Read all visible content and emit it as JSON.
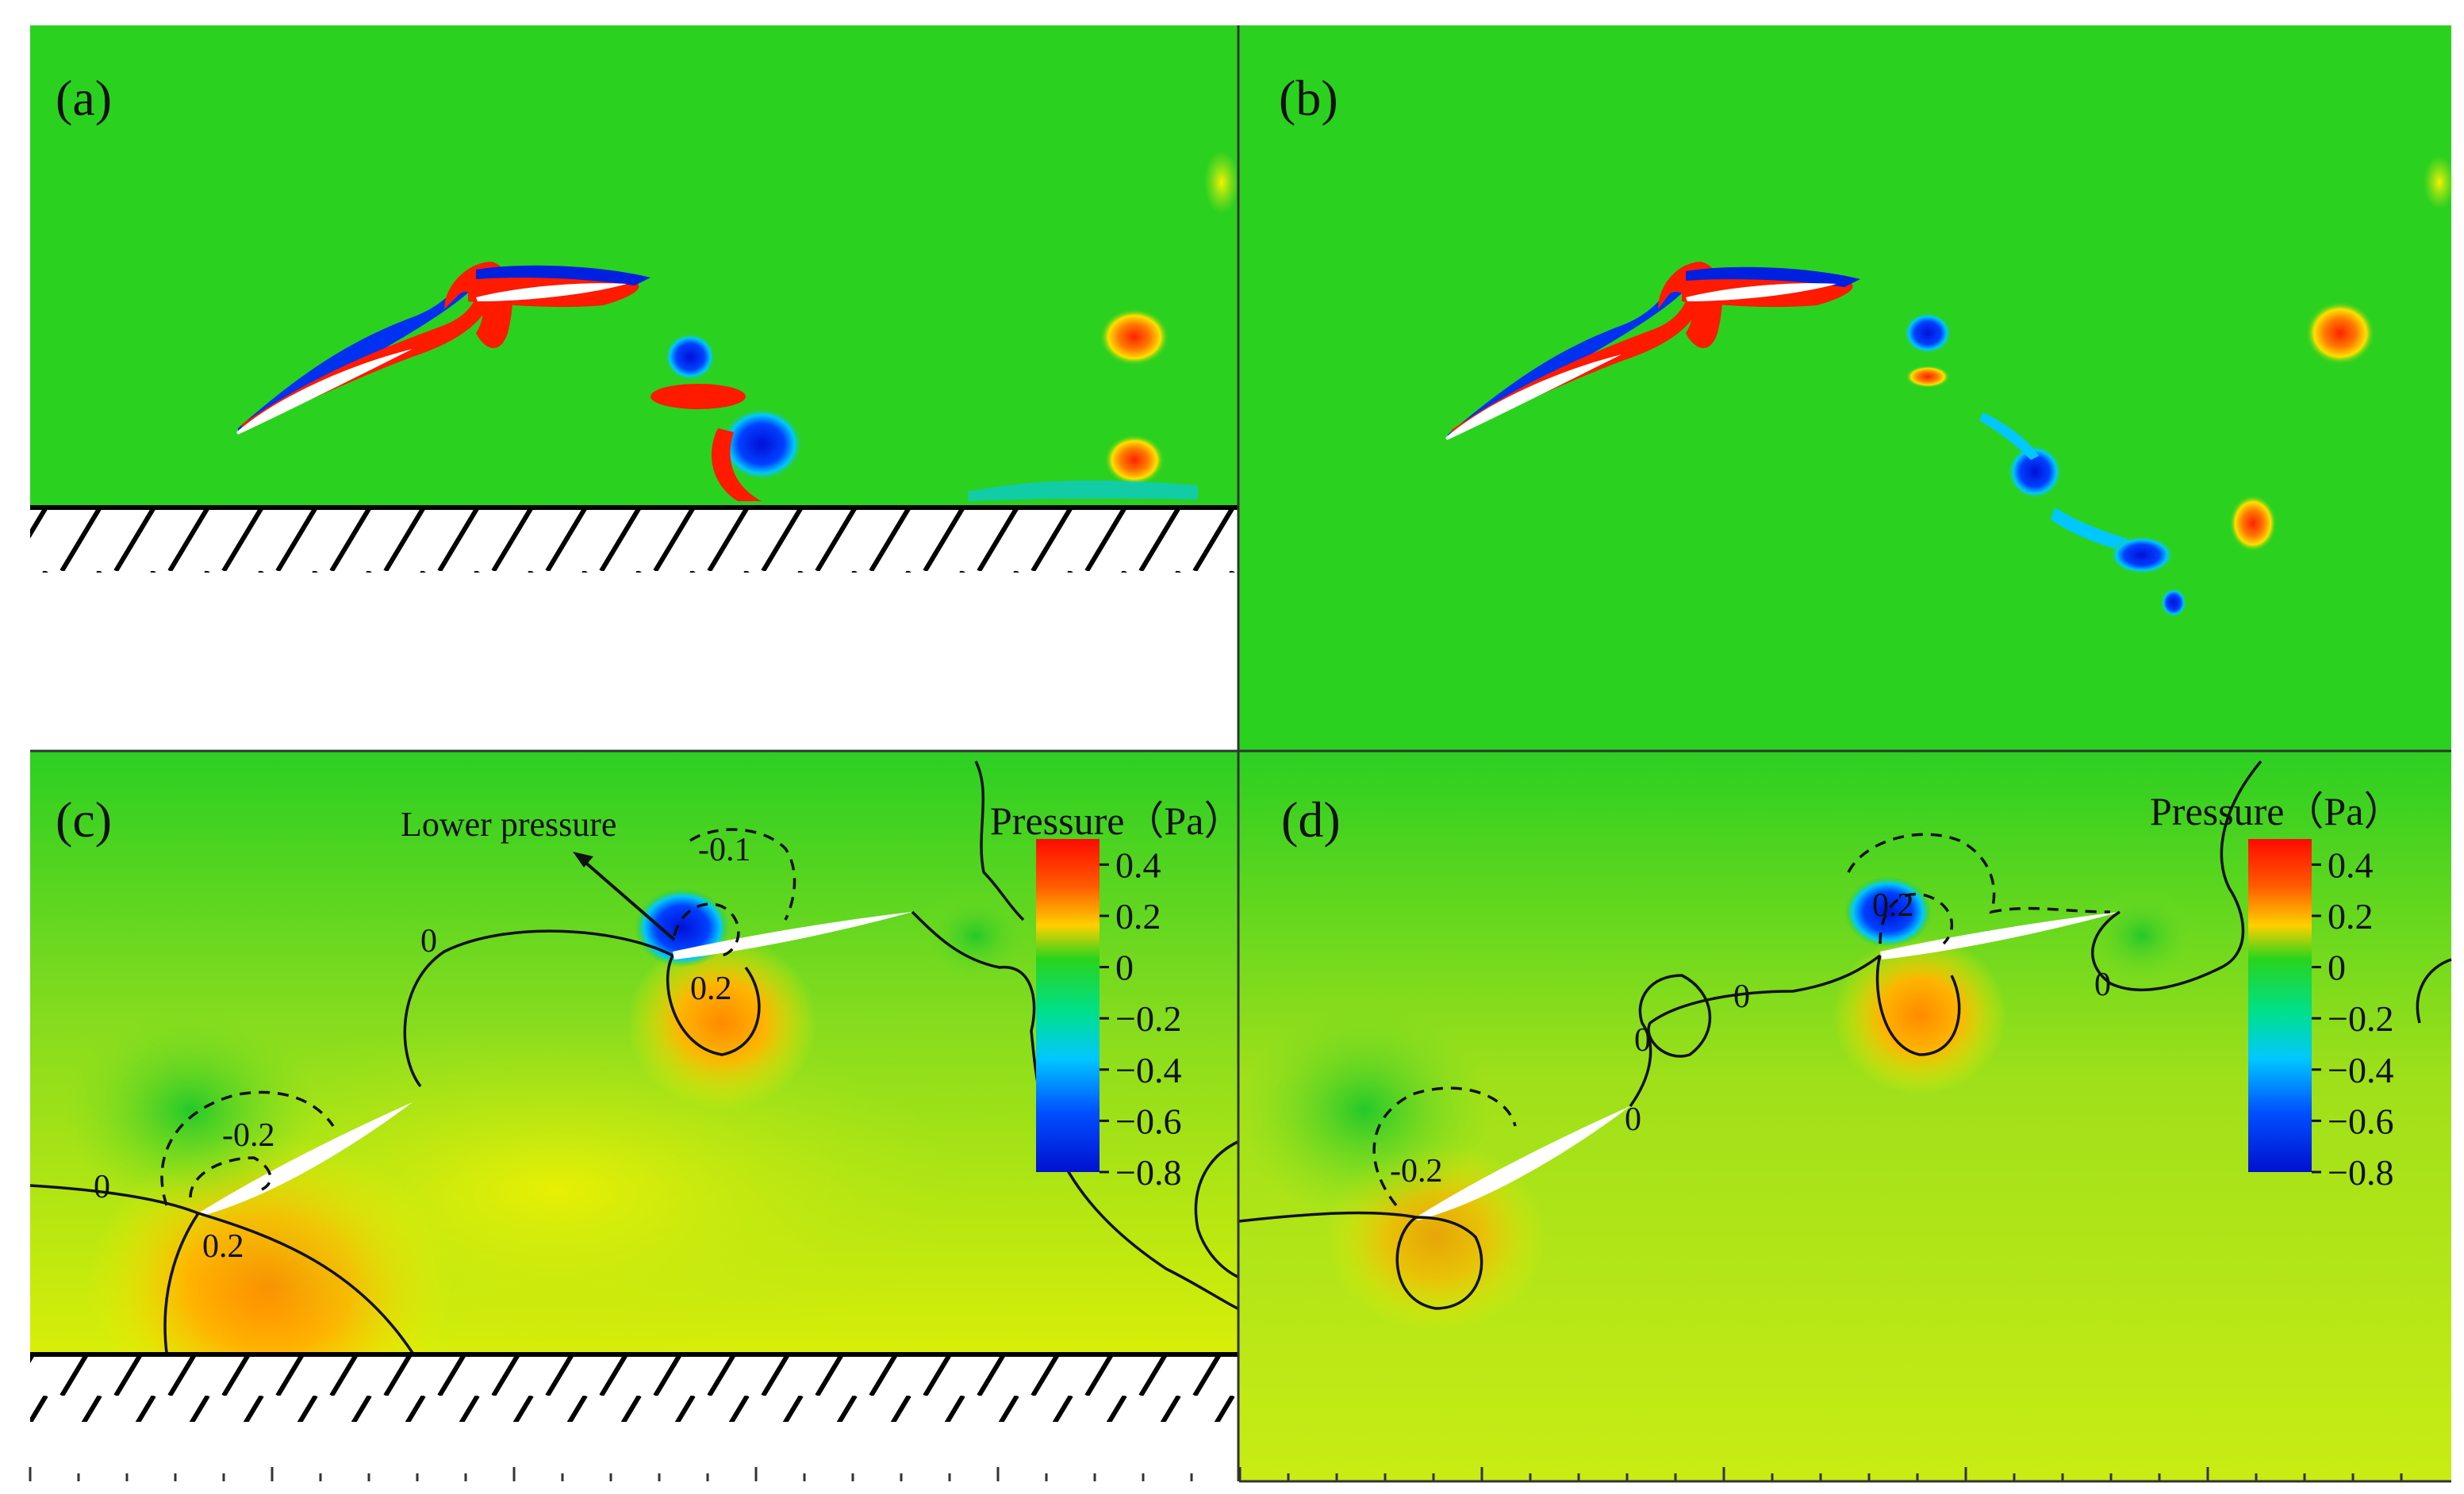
{
  "panels": {
    "a": "(a)",
    "b": "(b)",
    "c": "(c)",
    "d": "(d)"
  },
  "annotation": "Lower pressure",
  "colorbar": {
    "title": "Pressure（Pa）",
    "ticks": [
      "0.4",
      "0.2",
      "0",
      "-0.2",
      "-0.4",
      "-0.6",
      "-0.8"
    ],
    "range": [
      -0.8,
      0.5
    ]
  },
  "contour_labels": {
    "c": [
      "-0.1",
      "0",
      "0.2",
      "-0.2",
      "0",
      "0.2"
    ],
    "d": [
      "0.2",
      "0",
      "0",
      "0",
      "0",
      "-0.2"
    ]
  },
  "colors": {
    "field_green": "#2bd11f",
    "pressure_low": "#0018e0",
    "pressure_high": "#ff1a00",
    "ground": "#ffffff"
  },
  "icons": [
    "ground-hatch-icon",
    "arrow-icon"
  ]
}
